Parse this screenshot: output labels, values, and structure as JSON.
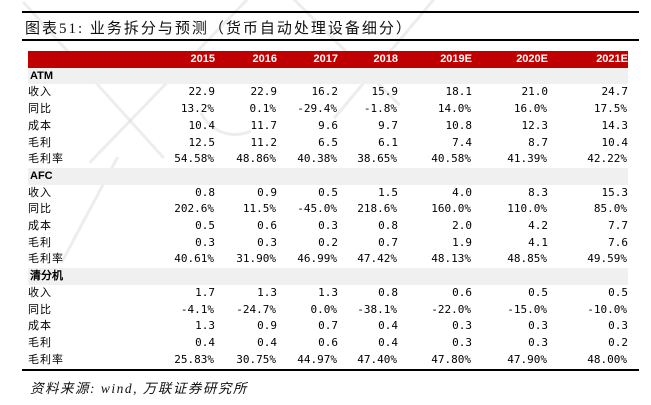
{
  "page": {
    "title": "图表51: 业务拆分与预测（货币自动处理设备细分）",
    "source_note": "资料来源: wind, 万联证券研究所"
  },
  "table": {
    "years": [
      "2015",
      "2016",
      "2017",
      "2018",
      "2019E",
      "2020E",
      "2021E"
    ],
    "sections": [
      {
        "name": "ATM",
        "rows": [
          {
            "label": "收入",
            "values": [
              "22.9",
              "22.9",
              "16.2",
              "15.9",
              "18.1",
              "21.0",
              "24.7"
            ]
          },
          {
            "label": "同比",
            "values": [
              "13.2%",
              "0.1%",
              "-29.4%",
              "-1.8%",
              "14.0%",
              "16.0%",
              "17.5%"
            ]
          },
          {
            "label": "成本",
            "values": [
              "10.4",
              "11.7",
              "9.6",
              "9.7",
              "10.8",
              "12.3",
              "14.3"
            ]
          },
          {
            "label": "毛利",
            "values": [
              "12.5",
              "11.2",
              "6.5",
              "6.1",
              "7.4",
              "8.7",
              "10.4"
            ]
          },
          {
            "label": "毛利率",
            "values": [
              "54.58%",
              "48.86%",
              "40.38%",
              "38.65%",
              "40.58%",
              "41.39%",
              "42.22%"
            ]
          }
        ]
      },
      {
        "name": "AFC",
        "rows": [
          {
            "label": "收入",
            "values": [
              "0.8",
              "0.9",
              "0.5",
              "1.5",
              "4.0",
              "8.3",
              "15.3"
            ]
          },
          {
            "label": "同比",
            "values": [
              "202.6%",
              "11.5%",
              "-45.0%",
              "218.6%",
              "160.0%",
              "110.0%",
              "85.0%"
            ]
          },
          {
            "label": "成本",
            "values": [
              "0.5",
              "0.6",
              "0.3",
              "0.8",
              "2.0",
              "4.2",
              "7.7"
            ]
          },
          {
            "label": "毛利",
            "values": [
              "0.3",
              "0.3",
              "0.2",
              "0.7",
              "1.9",
              "4.1",
              "7.6"
            ]
          },
          {
            "label": "毛利率",
            "values": [
              "40.61%",
              "31.90%",
              "46.99%",
              "47.42%",
              "48.13%",
              "48.85%",
              "49.59%"
            ]
          }
        ]
      },
      {
        "name": "清分机",
        "rows": [
          {
            "label": "收入",
            "values": [
              "1.7",
              "1.3",
              "1.3",
              "0.8",
              "0.6",
              "0.5",
              "0.5"
            ]
          },
          {
            "label": "同比",
            "values": [
              "-4.1%",
              "-24.7%",
              "0.0%",
              "-38.1%",
              "-22.0%",
              "-15.0%",
              "-10.0%"
            ]
          },
          {
            "label": "成本",
            "values": [
              "1.3",
              "0.9",
              "0.7",
              "0.4",
              "0.3",
              "0.3",
              "0.3"
            ]
          },
          {
            "label": "毛利",
            "values": [
              "0.4",
              "0.4",
              "0.6",
              "0.4",
              "0.3",
              "0.3",
              "0.2"
            ]
          },
          {
            "label": "毛利率",
            "values": [
              "25.83%",
              "30.75%",
              "44.97%",
              "47.40%",
              "47.80%",
              "47.90%",
              "48.00%"
            ]
          }
        ]
      }
    ]
  },
  "colors": {
    "header_bg": "#C00000",
    "header_text": "#FFFFFF",
    "section_row_bg": "#F0F0F0",
    "rule": "#000000"
  }
}
